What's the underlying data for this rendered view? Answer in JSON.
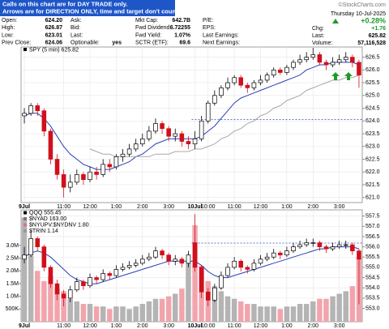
{
  "header": {
    "notice": [
      "Calls on this chart are for DAY TRADE only.",
      "Arrows are for DIRECTION ONLY, time and target don't count."
    ],
    "source": "©StockCharts.com"
  },
  "quote": {
    "columns": [
      [
        [
          "Open:",
          "624.20"
        ],
        [
          "High:",
          "626.87"
        ],
        [
          "Low:",
          "623.01"
        ],
        [
          "Prev Close:",
          "624.06"
        ]
      ],
      [
        [
          "Ask:"
        ],
        [
          "Bid:"
        ],
        [
          "Last:"
        ],
        [
          "Optionable:",
          "yes"
        ]
      ],
      [
        [
          "Mkt Cap:",
          "642.7B"
        ],
        [
          "Fwd Dividend:",
          "6.72255"
        ],
        [
          "Fwd Yield:",
          "1.07%"
        ],
        [
          "SCTR (ETF):",
          "69.6"
        ]
      ],
      [
        [
          "P/E:"
        ],
        [
          "EPS:"
        ],
        [
          "Last Earnings:"
        ],
        [
          "Next Earnings:"
        ]
      ]
    ],
    "date": "Thursday 10-Jul-2025",
    "change_pct": "+0.28%",
    "stats": [
      [
        "Chg:",
        "+1.76"
      ],
      [
        "Last:",
        "625.82"
      ],
      [
        "Volume:",
        "57,116,528"
      ]
    ]
  },
  "chart_data": [
    {
      "type": "candlestick",
      "legend": "SPY (5 min) 625.82",
      "categories": [
        "9Jul",
        null,
        null,
        null,
        null,
        null,
        "11:00",
        null,
        null,
        null,
        "12:00",
        null,
        null,
        null,
        "1:00",
        null,
        null,
        null,
        "2:00",
        null,
        null,
        null,
        "3:00",
        null,
        null,
        null,
        "10Jul",
        null,
        "10:00",
        null,
        null,
        null,
        "11:00",
        null,
        null,
        null,
        "12:00",
        null,
        null,
        null,
        "1:00",
        null,
        null,
        null,
        "2:00",
        null,
        null,
        null,
        "3:00",
        null,
        null,
        null
      ],
      "open": [
        624.2,
        624.3,
        624.6,
        624.4,
        623.6,
        622.5,
        621.9,
        621.4,
        621.6,
        621.9,
        621.7,
        622.0,
        621.9,
        622.3,
        622.2,
        622.6,
        622.7,
        622.9,
        623.1,
        623.3,
        623.6,
        623.9,
        623.7,
        623.4,
        623.5,
        623.2,
        623.1,
        623.3,
        624.0,
        624.7,
        625.0,
        625.3,
        625.5,
        625.7,
        625.4,
        625.3,
        625.5,
        625.6,
        625.8,
        626.0,
        625.9,
        626.1,
        626.3,
        626.4,
        626.5,
        626.6,
        626.3,
        626.2,
        626.3,
        626.4,
        626.5,
        626.3
      ],
      "high": [
        624.5,
        624.7,
        624.7,
        624.5,
        623.7,
        622.7,
        622.1,
        621.9,
        622.1,
        622.0,
        622.2,
        622.2,
        622.5,
        622.5,
        622.7,
        622.9,
        623.1,
        623.3,
        623.5,
        623.8,
        624.1,
        624.0,
        623.8,
        623.7,
        623.6,
        623.4,
        623.6,
        624.2,
        624.8,
        625.2,
        625.4,
        625.7,
        625.8,
        625.8,
        625.5,
        625.6,
        625.8,
        625.9,
        626.1,
        626.1,
        626.2,
        626.4,
        626.6,
        626.7,
        626.87,
        626.7,
        626.4,
        626.5,
        626.6,
        626.7,
        626.6,
        626.4
      ],
      "low": [
        623.9,
        624.2,
        624.2,
        623.4,
        622.3,
        621.7,
        621.0,
        621.2,
        621.5,
        621.5,
        621.6,
        621.7,
        621.8,
        622.0,
        622.1,
        622.4,
        622.6,
        622.8,
        623.0,
        623.2,
        623.5,
        623.5,
        623.2,
        623.2,
        623.0,
        622.9,
        622.9,
        623.2,
        623.9,
        624.6,
        624.9,
        625.2,
        625.4,
        625.3,
        625.1,
        625.2,
        625.4,
        625.5,
        625.7,
        625.8,
        625.8,
        626.0,
        626.2,
        626.3,
        626.4,
        626.2,
        626.0,
        626.1,
        626.2,
        626.3,
        626.1,
        625.3
      ],
      "close": [
        624.3,
        624.6,
        624.4,
        623.6,
        622.5,
        621.9,
        621.4,
        621.6,
        621.9,
        621.7,
        622.0,
        621.9,
        622.3,
        622.2,
        622.6,
        622.7,
        622.9,
        623.1,
        623.3,
        623.6,
        623.9,
        623.7,
        623.4,
        623.5,
        623.2,
        623.1,
        623.3,
        624.0,
        624.7,
        625.0,
        625.3,
        625.5,
        625.7,
        625.4,
        625.3,
        625.5,
        625.6,
        625.8,
        626.0,
        625.9,
        626.1,
        626.3,
        626.4,
        626.5,
        626.6,
        626.3,
        626.2,
        626.3,
        626.4,
        626.5,
        626.3,
        625.8
      ],
      "up_color": "#000000",
      "down_color": "#d0101c",
      "legend_color": "#000000",
      "overlays": [
        {
          "color": "#2a3fb8",
          "values": [
            624.2,
            624.3,
            624.3,
            624.1,
            623.8,
            623.4,
            623.0,
            622.7,
            622.5,
            622.3,
            622.2,
            622.1,
            622.1,
            622.1,
            622.2,
            622.3,
            622.4,
            622.6,
            622.7,
            622.9,
            623.1,
            623.2,
            623.3,
            623.3,
            623.3,
            623.3,
            623.3,
            623.4,
            623.6,
            623.8,
            624.1,
            624.4,
            624.7,
            624.9,
            625.0,
            625.1,
            625.2,
            625.3,
            625.4,
            625.5,
            625.6,
            625.7,
            625.8,
            626.0,
            626.1,
            626.2,
            626.2,
            626.3,
            626.3,
            626.3,
            626.3,
            626.2
          ]
        },
        {
          "color": "#a8a8a8",
          "values": [
            null,
            null,
            null,
            null,
            null,
            null,
            null,
            null,
            null,
            null,
            622.9,
            622.8,
            622.7,
            622.7,
            622.6,
            622.6,
            622.6,
            622.6,
            622.6,
            622.6,
            622.7,
            622.7,
            622.7,
            622.8,
            622.8,
            622.8,
            622.9,
            622.9,
            623.0,
            623.1,
            623.3,
            623.4,
            623.6,
            623.7,
            623.9,
            624.0,
            624.2,
            624.3,
            624.5,
            624.6,
            624.8,
            624.9,
            625.0,
            625.2,
            625.3,
            625.4,
            625.5,
            625.6,
            625.6,
            625.7,
            625.7,
            625.8
          ]
        }
      ],
      "reference_line": 624.06,
      "reference_color": "#3048c0",
      "ylim": [
        620.8,
        626.9
      ],
      "yticks": [
        {
          "value": 621,
          "label": "621.0"
        },
        621.5,
        {
          "value": 622,
          "label": "622.0"
        },
        622.5,
        {
          "value": 623,
          "label": "623.0"
        },
        623.5,
        {
          "value": 624,
          "label": "624.0"
        },
        624.5,
        {
          "value": 625,
          "label": "625.0"
        },
        625.5,
        {
          "value": 626,
          "label": "626.0"
        },
        626.5
      ],
      "grid": true
    },
    {
      "type": "candlestick",
      "legend_entries": [
        {
          "name": "QQQ 555.45",
          "color": "#000000"
        },
        {
          "name": "$NYAD 163.00",
          "color": "#777777"
        },
        {
          "name": "$NYUPV:$NYDNV 1.80",
          "color": "#e07080"
        },
        {
          "name": "$TRIN 1.14",
          "color": "#999999"
        }
      ],
      "categories": [
        "9Jul",
        null,
        null,
        null,
        null,
        null,
        "11:00",
        null,
        null,
        null,
        "12:00",
        null,
        null,
        null,
        "1:00",
        null,
        null,
        null,
        "2:00",
        null,
        null,
        null,
        "3:00",
        null,
        null,
        null,
        "10Jul",
        null,
        "10:00",
        null,
        null,
        null,
        "11:00",
        null,
        null,
        null,
        "12:00",
        null,
        null,
        null,
        "1:00",
        null,
        null,
        null,
        "2:00",
        null,
        null,
        null,
        "3:00",
        null,
        null,
        null
      ],
      "open": [
        555.4,
        555.6,
        556.4,
        556.0,
        555.0,
        554.2,
        553.7,
        553.5,
        553.9,
        554.3,
        554.1,
        554.5,
        554.4,
        554.7,
        554.6,
        554.9,
        555.0,
        555.1,
        555.2,
        555.4,
        555.5,
        555.8,
        555.6,
        555.3,
        555.4,
        555.2,
        556.2,
        555.0,
        553.8,
        553.4,
        554.0,
        554.6,
        555.0,
        555.3,
        555.0,
        554.9,
        555.2,
        555.4,
        555.5,
        555.7,
        555.6,
        555.8,
        556.0,
        556.1,
        556.2,
        556.2,
        556.0,
        555.9,
        556.0,
        556.1,
        556.1,
        555.8
      ],
      "high": [
        556.0,
        556.8,
        556.5,
        556.1,
        555.1,
        554.4,
        553.9,
        554.1,
        554.5,
        554.4,
        554.7,
        554.6,
        554.9,
        554.8,
        555.1,
        555.2,
        555.3,
        555.4,
        555.6,
        555.7,
        556.0,
        555.9,
        555.7,
        555.6,
        555.5,
        555.8,
        557.6,
        555.1,
        554.0,
        554.2,
        554.8,
        555.2,
        555.5,
        555.4,
        555.1,
        555.4,
        555.6,
        555.7,
        555.9,
        555.8,
        556.0,
        556.2,
        556.3,
        556.4,
        556.4,
        556.3,
        556.1,
        556.2,
        556.3,
        556.3,
        556.2,
        555.9
      ],
      "low": [
        555.2,
        555.5,
        555.8,
        554.8,
        554.0,
        553.4,
        553.1,
        553.3,
        553.8,
        553.9,
        554.0,
        554.2,
        554.3,
        554.4,
        554.5,
        554.8,
        554.9,
        555.0,
        555.1,
        555.3,
        555.4,
        555.4,
        555.1,
        555.1,
        555.0,
        555.0,
        554.8,
        553.5,
        553.1,
        553.3,
        553.9,
        554.5,
        554.9,
        554.8,
        554.7,
        554.8,
        555.1,
        555.3,
        555.4,
        555.4,
        555.5,
        555.7,
        555.9,
        556.0,
        556.0,
        555.8,
        555.7,
        555.8,
        555.9,
        555.9,
        555.6,
        553.2
      ],
      "close": [
        555.6,
        556.4,
        556.0,
        555.0,
        554.2,
        553.7,
        553.5,
        553.9,
        554.3,
        554.1,
        554.5,
        554.4,
        554.7,
        554.6,
        554.9,
        555.0,
        555.1,
        555.2,
        555.4,
        555.5,
        555.8,
        555.6,
        555.3,
        555.4,
        555.2,
        555.6,
        555.0,
        553.8,
        553.4,
        554.0,
        554.6,
        555.0,
        555.3,
        555.0,
        554.9,
        555.2,
        555.4,
        555.5,
        555.7,
        555.6,
        555.8,
        556.0,
        556.1,
        556.2,
        556.2,
        556.0,
        555.9,
        556.0,
        556.1,
        556.1,
        555.8,
        555.4
      ],
      "up_color": "#000000",
      "down_color": "#d0101c",
      "overlays": [
        {
          "color": "#2a3fb8",
          "values": [
            555.5,
            555.7,
            555.8,
            555.7,
            555.5,
            555.2,
            554.9,
            554.6,
            554.4,
            554.3,
            554.2,
            554.2,
            554.3,
            554.4,
            554.5,
            554.6,
            554.7,
            554.8,
            554.9,
            555.0,
            555.1,
            555.2,
            555.3,
            555.3,
            555.3,
            555.3,
            555.3,
            555.1,
            554.8,
            554.6,
            554.5,
            554.5,
            554.6,
            554.7,
            554.8,
            554.9,
            555.0,
            555.1,
            555.2,
            555.3,
            555.4,
            555.5,
            555.6,
            555.7,
            555.8,
            555.9,
            555.9,
            556.0,
            556.0,
            556.0,
            556.0,
            555.9
          ]
        }
      ],
      "reference_line": 556.18,
      "reference_color": "#3048c0",
      "volume": {
        "values": [
          4100000,
          2600000,
          2000000,
          1600000,
          1800000,
          1300000,
          1200000,
          900000,
          800000,
          700000,
          700000,
          600000,
          600000,
          500000,
          600000,
          600000,
          500000,
          600000,
          700000,
          800000,
          900000,
          900000,
          1000000,
          1100000,
          1300000,
          2300000,
          3800000,
          2200000,
          1600000,
          1400000,
          1200000,
          1000000,
          900000,
          800000,
          700000,
          700000,
          600000,
          600000,
          600000,
          500000,
          600000,
          600000,
          700000,
          700000,
          800000,
          900000,
          900000,
          1000000,
          1100000,
          1200000,
          1400000,
          2500000
        ],
        "up_color": "#b4b4b4",
        "down_color": "#f2a4ac",
        "ylim": [
          0,
          4400000
        ],
        "yticks": [
          {
            "value": 500000,
            "label": "500K"
          },
          {
            "value": 1000000,
            "label": "1.0M"
          },
          {
            "value": 1500000,
            "label": "1.5M"
          },
          {
            "value": 2000000,
            "label": "2.0M"
          },
          {
            "value": 2500000,
            "label": "2.5M"
          },
          {
            "value": 3000000,
            "label": "3.0M"
          }
        ]
      },
      "ylim": [
        552.35,
        557.8
      ],
      "yticks": [
        {
          "value": 553,
          "label": "553.0"
        },
        553.5,
        {
          "value": 554,
          "label": "554.0"
        },
        554.5,
        {
          "value": 555,
          "label": "555.0"
        },
        555.5,
        {
          "value": 556,
          "label": "556.0"
        },
        556.5,
        {
          "value": 557,
          "label": "557.0"
        },
        557.5
      ],
      "grid": true
    }
  ]
}
